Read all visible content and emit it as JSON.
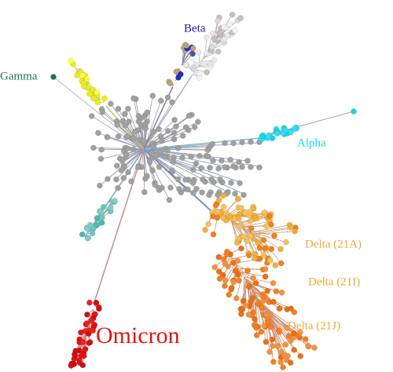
{
  "labels": {
    "beta": "Beta",
    "gamma": "Gamma",
    "alpha": "Alpha",
    "delta_21a": "Delta (21A)",
    "delta_21i": "Delta (21I)",
    "delta_21j": "Delta (21J)",
    "omicron": "Omicron"
  }
}
